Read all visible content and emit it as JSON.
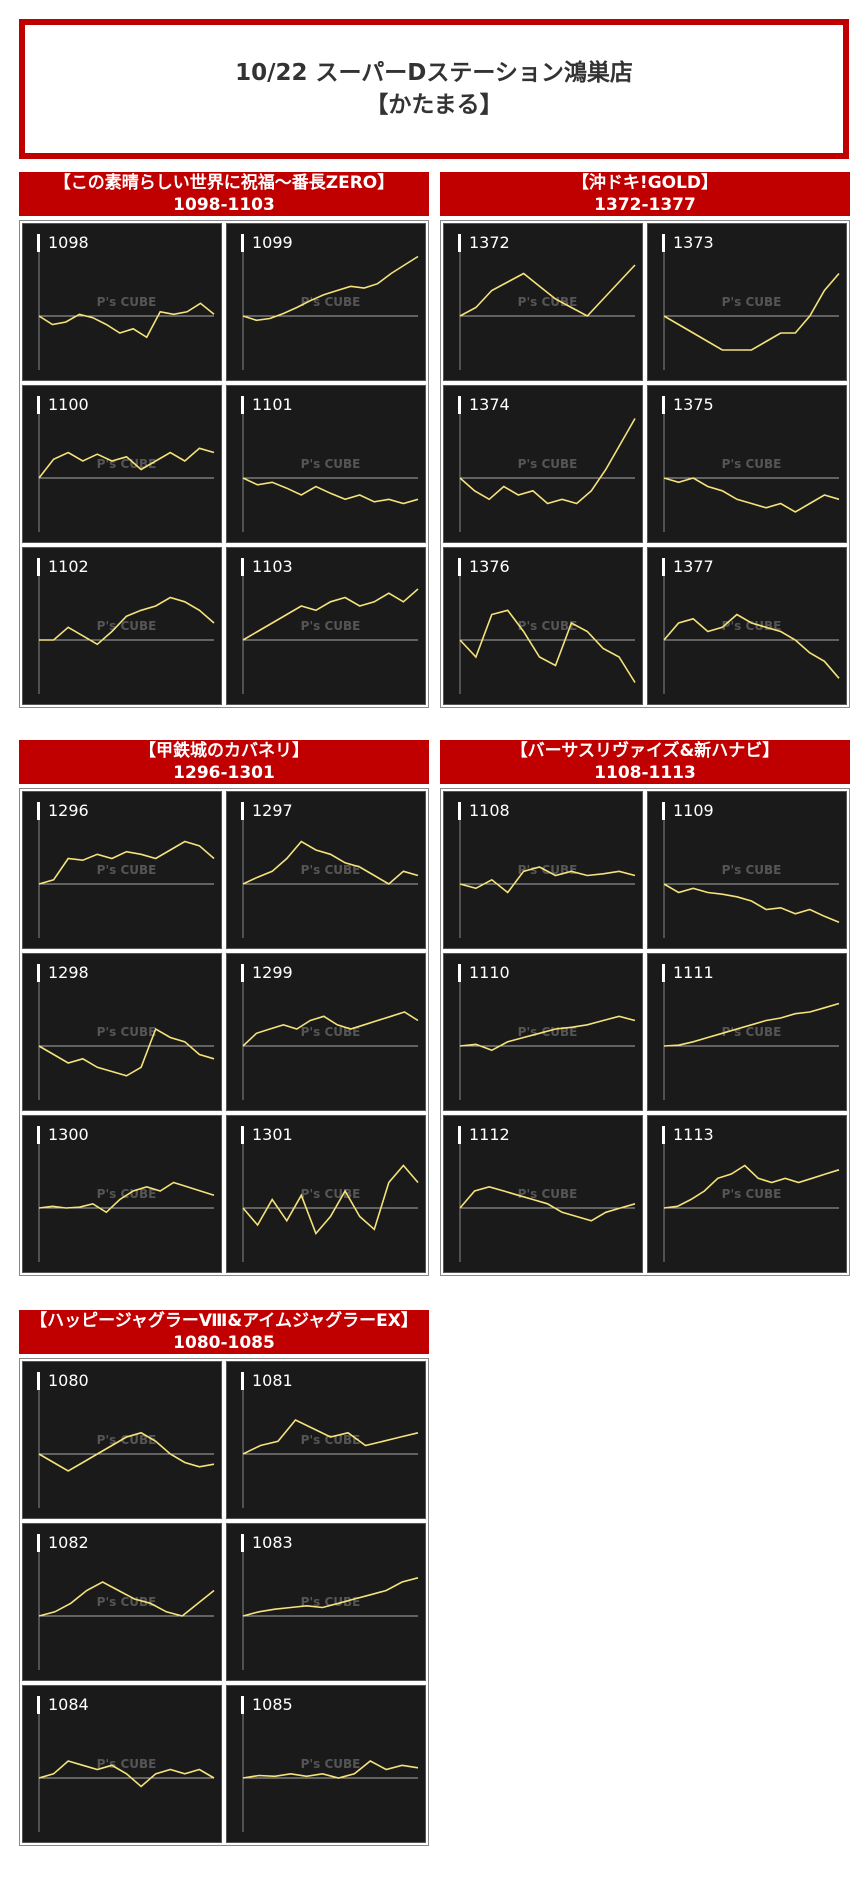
{
  "header": {
    "line1": "10/22 スーパーDステーション鴻巣店",
    "line2": "【かたまる】"
  },
  "groups": [
    {
      "title": "【この素晴らしい世界に祝福～番長ZERO】",
      "range": "1098-1103",
      "machines": [
        {
          "id": "1098",
          "values": [
            0,
            -0.1,
            -0.07,
            0.02,
            -0.02,
            -0.1,
            -0.2,
            -0.15,
            -0.25,
            0.05,
            0.02,
            0.05,
            0.15,
            0.02
          ]
        },
        {
          "id": "1099",
          "values": [
            0,
            -0.05,
            -0.03,
            0.03,
            0.1,
            0.18,
            0.25,
            0.3,
            0.35,
            0.33,
            0.38,
            0.5,
            0.6,
            0.7
          ]
        },
        {
          "id": "1100",
          "values": [
            0,
            0.22,
            0.3,
            0.2,
            0.28,
            0.2,
            0.25,
            0.1,
            0.2,
            0.3,
            0.2,
            0.35,
            0.3
          ]
        },
        {
          "id": "1101",
          "values": [
            0,
            -0.08,
            -0.05,
            -0.12,
            -0.2,
            -0.1,
            -0.18,
            -0.25,
            -0.2,
            -0.28,
            -0.25,
            -0.3,
            -0.25
          ]
        },
        {
          "id": "1102",
          "values": [
            0,
            0,
            0.15,
            0.05,
            -0.05,
            0.1,
            0.28,
            0.35,
            0.4,
            0.5,
            0.45,
            0.35,
            0.2
          ]
        },
        {
          "id": "1103",
          "values": [
            0,
            0.1,
            0.2,
            0.3,
            0.4,
            0.35,
            0.45,
            0.5,
            0.4,
            0.45,
            0.55,
            0.45,
            0.6
          ]
        }
      ]
    },
    {
      "title": "【沖ドキ!GOLD】",
      "range": "1372-1377",
      "machines": [
        {
          "id": "1372",
          "values": [
            0,
            0.1,
            0.3,
            0.4,
            0.5,
            0.35,
            0.2,
            0.1,
            0,
            0.2,
            0.4,
            0.6
          ]
        },
        {
          "id": "1373",
          "values": [
            0,
            -0.1,
            -0.2,
            -0.3,
            -0.4,
            -0.4,
            -0.4,
            -0.3,
            -0.2,
            -0.2,
            0,
            0.3,
            0.5
          ]
        },
        {
          "id": "1374",
          "values": [
            0,
            -0.15,
            -0.25,
            -0.1,
            -0.2,
            -0.15,
            -0.3,
            -0.25,
            -0.3,
            -0.15,
            0.1,
            0.4,
            0.7
          ]
        },
        {
          "id": "1375",
          "values": [
            0,
            -0.05,
            0,
            -0.1,
            -0.15,
            -0.25,
            -0.3,
            -0.35,
            -0.3,
            -0.4,
            -0.3,
            -0.2,
            -0.25
          ]
        },
        {
          "id": "1376",
          "values": [
            0,
            -0.2,
            0.3,
            0.35,
            0.1,
            -0.2,
            -0.3,
            0.2,
            0.1,
            -0.1,
            -0.2,
            -0.5
          ]
        },
        {
          "id": "1377",
          "values": [
            0,
            0.2,
            0.25,
            0.1,
            0.15,
            0.3,
            0.2,
            0.15,
            0.1,
            0,
            -0.15,
            -0.25,
            -0.45
          ]
        }
      ]
    },
    {
      "title": "【甲鉄城のカバネリ】",
      "range": "1296-1301",
      "machines": [
        {
          "id": "1296",
          "values": [
            0,
            0.05,
            0.3,
            0.28,
            0.35,
            0.3,
            0.38,
            0.35,
            0.3,
            0.4,
            0.5,
            0.45,
            0.3
          ]
        },
        {
          "id": "1297",
          "values": [
            0,
            0.08,
            0.15,
            0.3,
            0.5,
            0.4,
            0.35,
            0.25,
            0.2,
            0.1,
            0,
            0.15,
            0.1
          ]
        },
        {
          "id": "1298",
          "values": [
            0,
            -0.1,
            -0.2,
            -0.15,
            -0.25,
            -0.3,
            -0.35,
            -0.25,
            0.2,
            0.1,
            0.05,
            -0.1,
            -0.15
          ]
        },
        {
          "id": "1299",
          "values": [
            0,
            0.15,
            0.2,
            0.25,
            0.2,
            0.3,
            0.35,
            0.25,
            0.2,
            0.25,
            0.3,
            0.35,
            0.4,
            0.3
          ]
        },
        {
          "id": "1300",
          "values": [
            0,
            0.02,
            0,
            0.01,
            0.05,
            -0.05,
            0.1,
            0.2,
            0.25,
            0.2,
            0.3,
            0.25,
            0.2,
            0.15
          ]
        },
        {
          "id": "1301",
          "values": [
            0,
            -0.2,
            0.1,
            -0.15,
            0.15,
            -0.3,
            -0.1,
            0.2,
            -0.1,
            -0.25,
            0.3,
            0.5,
            0.3
          ]
        }
      ]
    },
    {
      "title": "【バーサスリヴァイズ&新ハナビ】",
      "range": "1108-1113",
      "machines": [
        {
          "id": "1108",
          "values": [
            0,
            -0.05,
            0.05,
            -0.1,
            0.15,
            0.2,
            0.1,
            0.15,
            0.1,
            0.12,
            0.15,
            0.1
          ]
        },
        {
          "id": "1109",
          "values": [
            0,
            -0.1,
            -0.05,
            -0.1,
            -0.12,
            -0.15,
            -0.2,
            -0.3,
            -0.28,
            -0.35,
            -0.3,
            -0.38,
            -0.45
          ]
        },
        {
          "id": "1110",
          "values": [
            0,
            0.02,
            -0.05,
            0.05,
            0.1,
            0.15,
            0.2,
            0.22,
            0.25,
            0.3,
            0.35,
            0.3
          ]
        },
        {
          "id": "1111",
          "values": [
            0,
            0.01,
            0.05,
            0.1,
            0.15,
            0.2,
            0.25,
            0.3,
            0.33,
            0.38,
            0.4,
            0.45,
            0.5
          ]
        },
        {
          "id": "1112",
          "values": [
            0,
            0.2,
            0.25,
            0.2,
            0.15,
            0.1,
            0.05,
            -0.05,
            -0.1,
            -0.15,
            -0.05,
            0,
            0.05
          ]
        },
        {
          "id": "1113",
          "values": [
            0,
            0.02,
            0.1,
            0.2,
            0.35,
            0.4,
            0.5,
            0.35,
            0.3,
            0.35,
            0.3,
            0.35,
            0.4,
            0.45
          ]
        }
      ]
    },
    {
      "title": "【ハッピージャグラーⅧ&アイムジャグラーEX】",
      "range": "1080-1085",
      "machines": [
        {
          "id": "1080",
          "values": [
            0,
            -0.1,
            -0.2,
            -0.1,
            0,
            0.1,
            0.2,
            0.25,
            0.15,
            0,
            -0.1,
            -0.15,
            -0.12
          ]
        },
        {
          "id": "1081",
          "values": [
            0,
            0.1,
            0.15,
            0.4,
            0.3,
            0.2,
            0.25,
            0.1,
            0.15,
            0.2,
            0.25
          ]
        },
        {
          "id": "1082",
          "values": [
            0,
            0.05,
            0.15,
            0.3,
            0.4,
            0.3,
            0.2,
            0.15,
            0.05,
            0,
            0.15,
            0.3
          ]
        },
        {
          "id": "1083",
          "values": [
            0,
            0.05,
            0.08,
            0.1,
            0.12,
            0.1,
            0.15,
            0.2,
            0.25,
            0.3,
            0.4,
            0.45
          ]
        },
        {
          "id": "1084",
          "values": [
            0,
            0.05,
            0.2,
            0.15,
            0.1,
            0.15,
            0.05,
            -0.1,
            0.05,
            0.1,
            0.05,
            0.1,
            0
          ]
        },
        {
          "id": "1085",
          "values": [
            0,
            0.03,
            0.02,
            0.05,
            0.02,
            0.05,
            0,
            0.05,
            0.2,
            0.1,
            0.15,
            0.12
          ]
        }
      ]
    }
  ],
  "watermark": "P's CUBE",
  "colors": {
    "accent": "#c00000",
    "line": "#f5e27a",
    "panel_bg": "#1a1a1a",
    "axis": "#aaaaaa"
  },
  "chart_data": {
    "type": "line",
    "note_series": "One small line chart per machine number; values are relative differential trends read from each panel"
  }
}
